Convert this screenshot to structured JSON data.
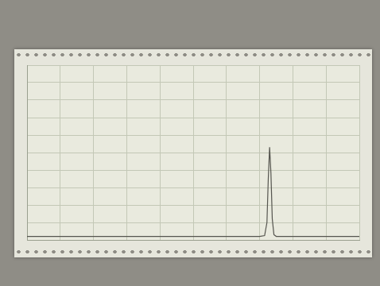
{
  "chart_data": {
    "type": "line",
    "x": [
      0,
      60,
      70,
      71.5,
      72.2,
      72.6,
      73,
      73.4,
      73.8,
      74.3,
      75,
      80,
      100
    ],
    "values": [
      2,
      2,
      2,
      2.5,
      10,
      35,
      53,
      38,
      12,
      3,
      2,
      2,
      2
    ],
    "color": "#55554f",
    "xlim": [
      0,
      100
    ],
    "xticks": [
      0,
      10,
      20,
      30,
      40,
      50,
      60,
      70,
      80,
      90,
      100
    ],
    "ylim": [
      0,
      100
    ],
    "yticks": [
      0,
      10,
      20,
      30,
      40,
      50,
      60,
      70,
      80,
      90,
      100
    ],
    "grid": true,
    "tick_labels": false
  }
}
